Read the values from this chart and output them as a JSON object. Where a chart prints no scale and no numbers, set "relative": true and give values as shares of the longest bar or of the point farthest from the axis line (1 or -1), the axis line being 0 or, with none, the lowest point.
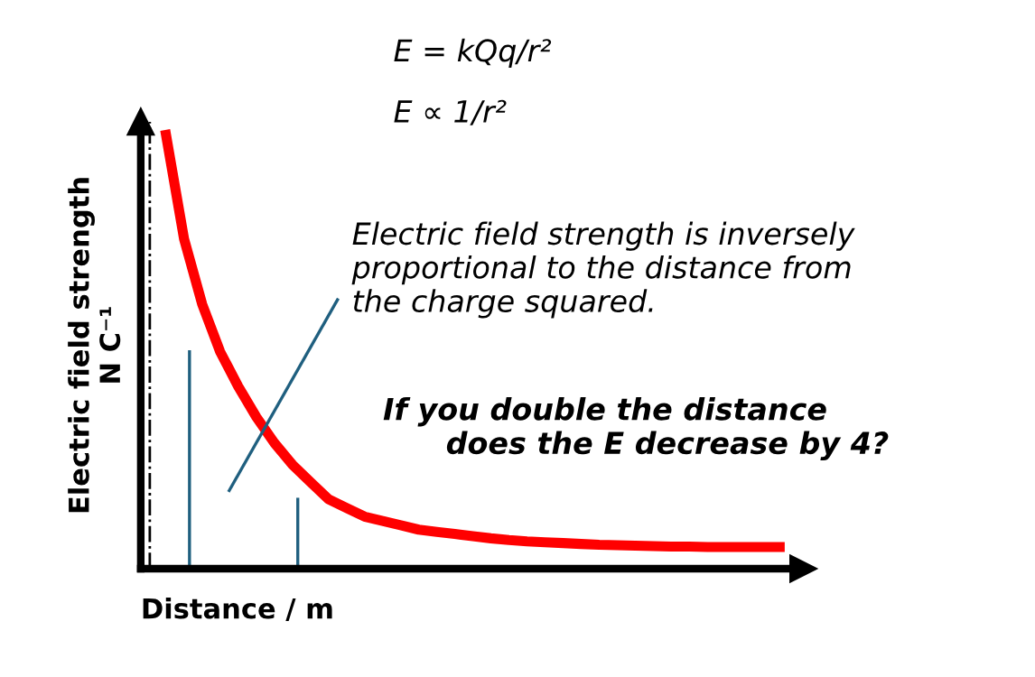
{
  "chart_data": {
    "type": "line",
    "relative": true,
    "xlabel": "Distance / m",
    "ylabel": "Electric field strength\nN C⁻¹",
    "categories": [
      null,
      null,
      null,
      null,
      null,
      null,
      null,
      null,
      null,
      null,
      null,
      null,
      null,
      null,
      null,
      null,
      null,
      null,
      null,
      null,
      null,
      null,
      null,
      null,
      null,
      null,
      null,
      null,
      null,
      null,
      null,
      null,
      null,
      null,
      null
    ],
    "series": [
      {
        "color": "#ff0000",
        "values": [
          1.0,
          0.76,
          0.61,
          0.5,
          0.42,
          0.35,
          0.29,
          0.24,
          0.2,
          0.16,
          0.14,
          0.12,
          0.11,
          0.1,
          0.09,
          0.085,
          0.08,
          0.075,
          0.07,
          0.066,
          0.063,
          0.061,
          0.059,
          0.057,
          0.055,
          0.054,
          0.053,
          0.052,
          0.051,
          0.051,
          0.05,
          0.05,
          0.05,
          0.05,
          0.05
        ]
      }
    ],
    "annotations": [
      "E = kQq/r²",
      "E ∝ 1/r²",
      "Electric field strength is inversely\nproportional to the distance from\nthe charge squared.",
      "If you double the distance\n      does the E decrease by 4?"
    ],
    "grid": false,
    "legend": false,
    "marker": "none",
    "line_style": "solid"
  }
}
